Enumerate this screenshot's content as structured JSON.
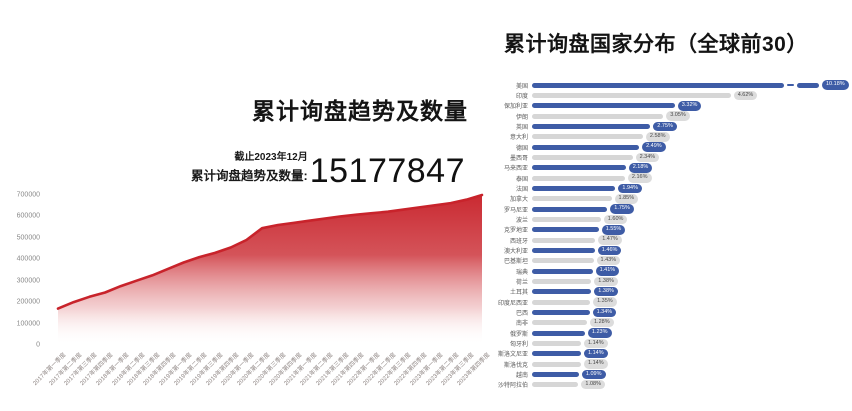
{
  "left_chart": {
    "title": "累计询盘趋势及数量",
    "asof_label": "截止2023年12月",
    "total_label": "累计询盘趋势及数量:",
    "total_value": "15177847"
  },
  "right_chart": {
    "title": "累计询盘国家分布（全球前30）"
  },
  "colors": {
    "area_red": "#c8232b",
    "bar_blue": "#3e5ca6",
    "bar_gray": "#d6d6d6"
  },
  "chart_data": [
    {
      "type": "area",
      "title": "累计询盘趋势及数量",
      "annotation": {
        "asof": "截止2023年12月",
        "label": "累计询盘趋势及数量:",
        "value": "15177847"
      },
      "x": [
        "2017年第一季度",
        "2017年第二季度",
        "2017年第三季度",
        "2017年第四季度",
        "2018年第一季度",
        "2018年第二季度",
        "2018年第三季度",
        "2018年第四季度",
        "2019年第一季度",
        "2019年第二季度",
        "2019年第三季度",
        "2019年第四季度",
        "2020年第一季度",
        "2020年第二季度",
        "2020年第三季度",
        "2020年第四季度",
        "2021年第一季度",
        "2021年第二季度",
        "2021年第三季度",
        "2021年第四季度",
        "2022年第一季度",
        "2022年第二季度",
        "2022年第三季度",
        "2022年第四季度",
        "2023年第一季度",
        "2023年第二季度",
        "2023年第三季度",
        "2023年第四季度"
      ],
      "values": [
        170000,
        200000,
        225000,
        245000,
        275000,
        300000,
        325000,
        355000,
        385000,
        410000,
        430000,
        455000,
        490000,
        545000,
        560000,
        570000,
        580000,
        590000,
        600000,
        608000,
        615000,
        622000,
        632000,
        642000,
        652000,
        662000,
        678000,
        700000
      ],
      "ylim": [
        0,
        700000
      ],
      "yticks": [
        0,
        100000,
        200000,
        300000,
        400000,
        500000,
        600000,
        700000
      ],
      "line_color": "#c8232b",
      "grid": false,
      "legend": "none"
    },
    {
      "type": "bar",
      "orientation": "horizontal",
      "title": "累计询盘国家分布（全球前30）",
      "unit": "%",
      "categories": [
        "美国",
        "印度",
        "保加利亚",
        "伊朗",
        "英国",
        "意大利",
        "德国",
        "墨西哥",
        "马来西亚",
        "泰国",
        "法国",
        "加拿大",
        "罗马尼亚",
        "波兰",
        "克罗地亚",
        "西班牙",
        "澳大利亚",
        "巴基斯坦",
        "瑞典",
        "荷兰",
        "土耳其",
        "印度尼西亚",
        "巴西",
        "南非",
        "俄罗斯",
        "匈牙利",
        "斯洛文尼亚",
        "斯洛伐克",
        "越南",
        "沙特阿拉伯"
      ],
      "values": [
        10.18,
        4.62,
        3.32,
        3.05,
        2.75,
        2.58,
        2.49,
        2.34,
        2.18,
        2.16,
        1.94,
        1.85,
        1.75,
        1.6,
        1.55,
        1.47,
        1.46,
        1.43,
        1.41,
        1.38,
        1.38,
        1.35,
        1.34,
        1.28,
        1.23,
        1.14,
        1.14,
        1.14,
        1.09,
        1.08
      ],
      "bar_colors_alternate": [
        "#3e5ca6",
        "#d6d6d6"
      ],
      "broken_axis_rows": [
        0
      ],
      "legend": "none"
    }
  ]
}
